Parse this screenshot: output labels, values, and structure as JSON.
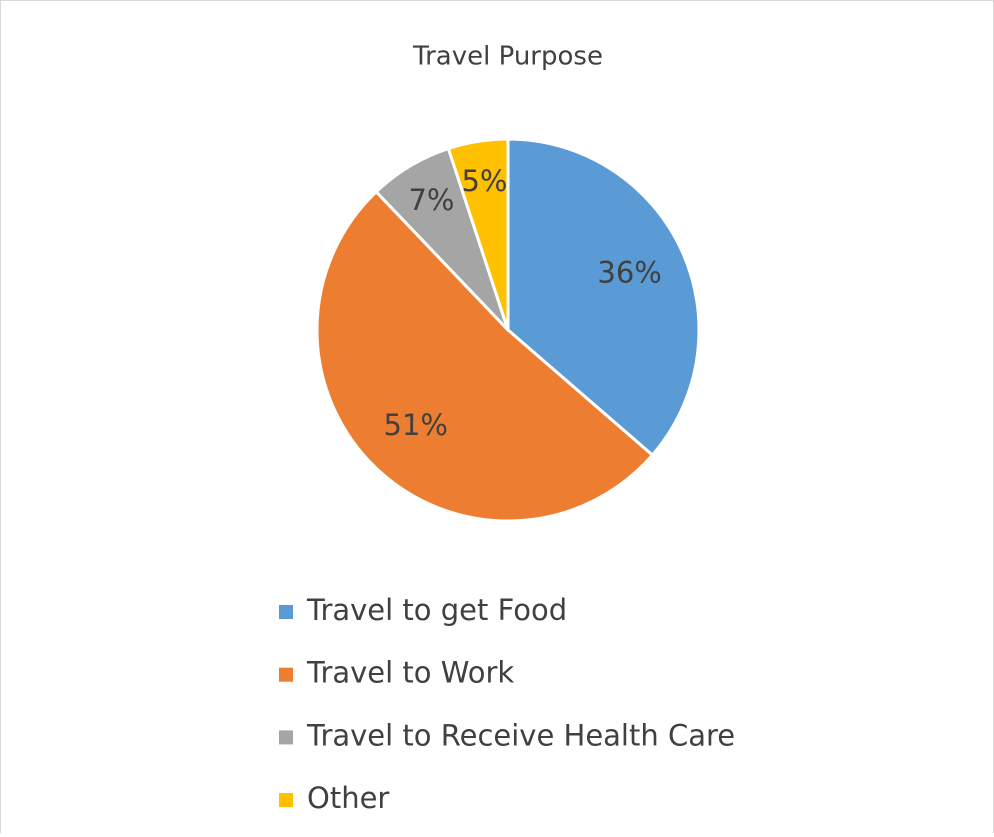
{
  "chart_data": {
    "type": "pie",
    "title": "Travel Purpose",
    "categories": [
      "Travel to get Food",
      "Travel to Work",
      "Travel to Receive Health Care",
      "Other"
    ],
    "values": [
      36,
      51,
      7,
      5
    ],
    "value_labels": [
      "36%",
      "51%",
      "7%",
      "5%"
    ],
    "colors": [
      "#5b9bd5",
      "#ed7d31",
      "#a5a5a5",
      "#ffc000"
    ],
    "legend": "bottom"
  }
}
